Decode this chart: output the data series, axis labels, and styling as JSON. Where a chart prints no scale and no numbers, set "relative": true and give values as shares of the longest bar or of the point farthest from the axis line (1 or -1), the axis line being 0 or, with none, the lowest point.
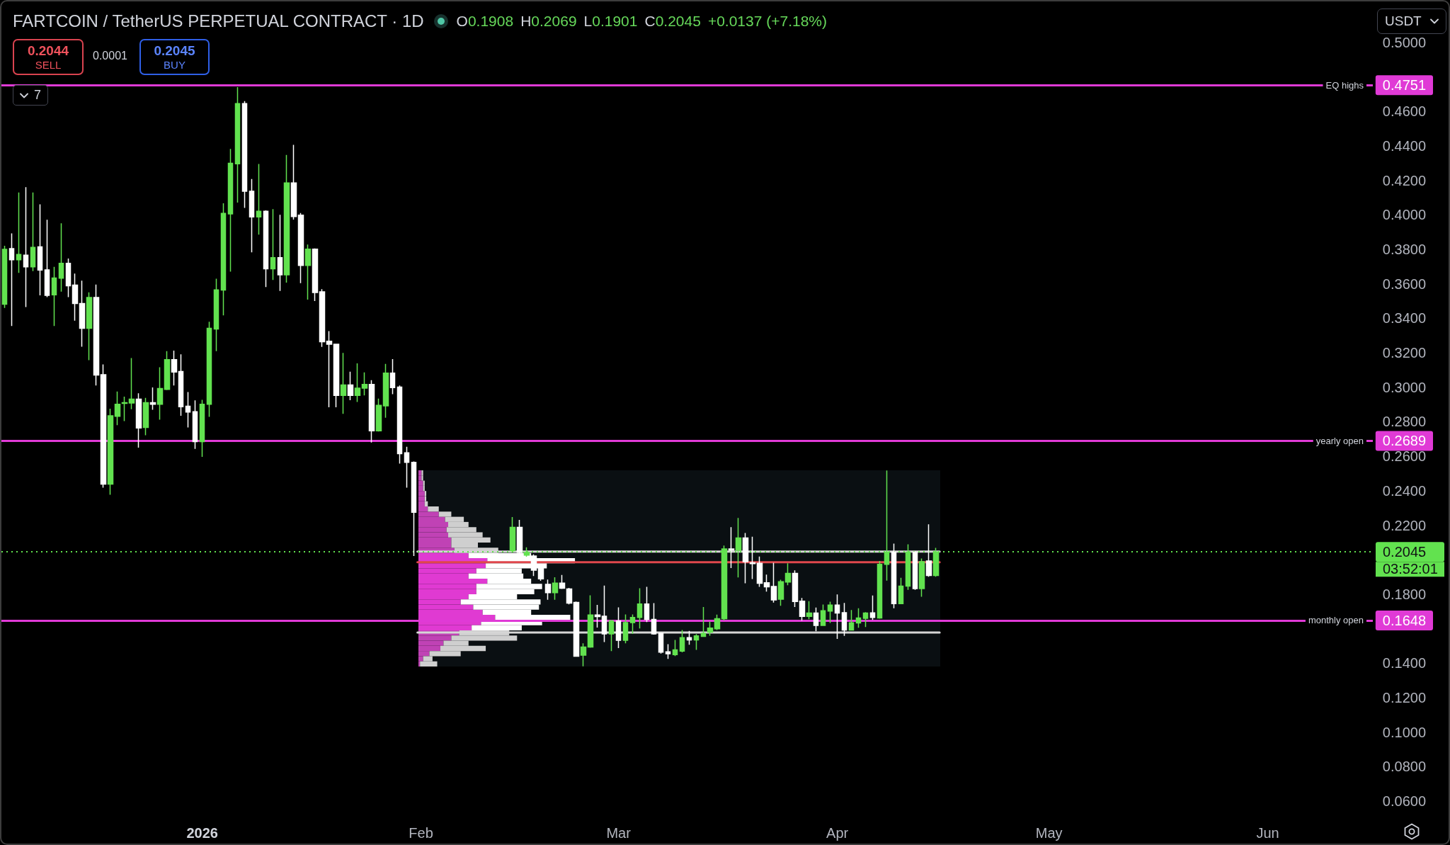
{
  "chart_data": [
    {
      "type": "candlestick",
      "title": "FARTCOIN / TetherUS PERPETUAL CONTRACT · 1D",
      "series": [
        {
          "x": [
            "2025-12-04",
            "2025-12-05",
            "2025-12-06",
            "2025-12-07",
            "2025-12-08",
            "2025-12-09",
            "2025-12-10",
            "2025-12-11",
            "2025-12-12",
            "2025-12-13",
            "2025-12-14",
            "2025-12-15",
            "2025-12-16",
            "2025-12-17",
            "2025-12-18",
            "2025-12-19",
            "2025-12-20",
            "2025-12-21",
            "2025-12-22",
            "2025-12-23",
            "2025-12-24",
            "2025-12-25",
            "2025-12-26",
            "2025-12-27",
            "2025-12-28",
            "2025-12-29",
            "2025-12-30",
            "2025-12-31",
            "2026-01-01",
            "2026-01-02",
            "2026-01-03",
            "2026-01-04",
            "2026-01-05",
            "2026-01-06",
            "2026-01-07",
            "2026-01-08",
            "2026-01-09",
            "2026-01-10",
            "2026-01-11",
            "2026-01-12",
            "2026-01-13",
            "2026-01-14",
            "2026-01-15",
            "2026-01-16",
            "2026-01-17",
            "2026-01-18",
            "2026-01-19",
            "2026-01-20",
            "2026-01-21",
            "2026-01-22",
            "2026-01-23",
            "2026-01-24",
            "2026-01-25",
            "2026-01-26",
            "2026-01-27",
            "2026-01-28",
            "2026-01-29",
            "2026-01-30",
            "2026-01-31",
            "2026-02-14",
            "2026-02-15",
            "2026-02-16",
            "2026-02-17",
            "2026-02-18",
            "2026-02-19",
            "2026-02-20",
            "2026-02-21",
            "2026-02-22",
            "2026-02-23",
            "2026-02-24",
            "2026-02-25",
            "2026-02-26",
            "2026-02-27",
            "2026-02-28",
            "2026-03-01",
            "2026-03-02",
            "2026-03-03",
            "2026-03-04",
            "2026-03-05",
            "2026-03-06",
            "2026-03-07",
            "2026-03-08",
            "2026-03-09",
            "2026-03-10",
            "2026-03-11",
            "2026-03-12",
            "2026-03-13",
            "2026-03-14",
            "2026-03-15",
            "2026-03-16",
            "2026-03-17",
            "2026-03-18",
            "2026-03-19",
            "2026-03-20",
            "2026-03-21",
            "2026-03-22",
            "2026-03-23",
            "2026-03-24",
            "2026-03-25",
            "2026-03-26",
            "2026-03-27",
            "2026-03-28",
            "2026-03-29",
            "2026-03-30",
            "2026-03-31",
            "2026-04-01",
            "2026-04-02",
            "2026-04-03",
            "2026-04-04",
            "2026-04-05",
            "2026-04-06",
            "2026-04-07",
            "2026-04-08",
            "2026-04-09",
            "2026-04-10",
            "2026-04-11",
            "2026-04-12",
            "2026-04-13",
            "2026-04-14",
            "2026-04-15"
          ],
          "ohlc": [
            [
              0.3481,
              0.382,
              0.346,
              0.38
            ],
            [
              0.3804,
              0.3892,
              0.3355,
              0.3739
            ],
            [
              0.3739,
              0.4129,
              0.3663,
              0.377
            ],
            [
              0.3766,
              0.416,
              0.3465,
              0.3698
            ],
            [
              0.3698,
              0.4129,
              0.3673,
              0.3811
            ],
            [
              0.3814,
              0.406,
              0.3533,
              0.368
            ],
            [
              0.3681,
              0.3971,
              0.3522,
              0.3533
            ],
            [
              0.3536,
              0.3698,
              0.3355,
              0.3633
            ],
            [
              0.3632,
              0.3951,
              0.3554,
              0.3718
            ],
            [
              0.3718,
              0.3746,
              0.3522,
              0.3588
            ],
            [
              0.3592,
              0.3659,
              0.3386,
              0.3485
            ],
            [
              0.3485,
              0.3618,
              0.3235,
              0.3342
            ],
            [
              0.3342,
              0.355,
              0.3157,
              0.352
            ],
            [
              0.352,
              0.3595,
              0.301,
              0.3071
            ],
            [
              0.3073,
              0.3132,
              0.2418,
              0.2438
            ],
            [
              0.2438,
              0.2876,
              0.2377,
              0.2835
            ],
            [
              0.2831,
              0.2975,
              0.278,
              0.2901
            ],
            [
              0.2906,
              0.2945,
              0.2804,
              0.291
            ],
            [
              0.2908,
              0.3169,
              0.2872,
              0.2931
            ],
            [
              0.2931,
              0.2965,
              0.265,
              0.2764
            ],
            [
              0.2767,
              0.2938,
              0.2722,
              0.291
            ],
            [
              0.291,
              0.2999,
              0.2869,
              0.2901
            ],
            [
              0.2901,
              0.3116,
              0.2812,
              0.2993
            ],
            [
              0.2988,
              0.3209,
              0.2983,
              0.316
            ],
            [
              0.316,
              0.3212,
              0.301,
              0.3088
            ],
            [
              0.3091,
              0.3191,
              0.2835,
              0.2887
            ],
            [
              0.289,
              0.2972,
              0.2767,
              0.2856
            ],
            [
              0.2858,
              0.2924,
              0.2643,
              0.2685
            ],
            [
              0.2685,
              0.2927,
              0.2596,
              0.2901
            ],
            [
              0.2901,
              0.338,
              0.2828,
              0.3342
            ],
            [
              0.3338,
              0.3629,
              0.3209,
              0.3565
            ],
            [
              0.3563,
              0.4067,
              0.3417,
              0.4008
            ],
            [
              0.4005,
              0.4382,
              0.367,
              0.4299
            ],
            [
              0.4296,
              0.474,
              0.4071,
              0.4645
            ],
            [
              0.4645,
              0.4659,
              0.404,
              0.4136
            ],
            [
              0.4136,
              0.4207,
              0.3782,
              0.3987
            ],
            [
              0.3987,
              0.4294,
              0.3885,
              0.402
            ],
            [
              0.402,
              0.4025,
              0.3581,
              0.3687
            ],
            [
              0.3687,
              0.4033,
              0.3622,
              0.3751
            ],
            [
              0.3751,
              0.4,
              0.3558,
              0.3652
            ],
            [
              0.3652,
              0.4347,
              0.3607,
              0.4185
            ],
            [
              0.4185,
              0.4405,
              0.3972,
              0.399
            ],
            [
              0.3998,
              0.401,
              0.3604,
              0.3706
            ],
            [
              0.3706,
              0.3827,
              0.3508,
              0.3801
            ],
            [
              0.3801,
              0.3805,
              0.35,
              0.3549
            ],
            [
              0.3553,
              0.3569,
              0.3234,
              0.3264
            ],
            [
              0.3267,
              0.3325,
              0.2884,
              0.3249
            ],
            [
              0.3249,
              0.3252,
              0.2884,
              0.2953
            ],
            [
              0.2953,
              0.3199,
              0.2846,
              0.3013
            ],
            [
              0.3013,
              0.309,
              0.2925,
              0.2953
            ],
            [
              0.2953,
              0.3138,
              0.2915,
              0.2995
            ],
            [
              0.2995,
              0.3086,
              0.2953,
              0.3016
            ],
            [
              0.3016,
              0.3041,
              0.2679,
              0.2747
            ],
            [
              0.2747,
              0.2934,
              0.2743,
              0.2895
            ],
            [
              0.2892,
              0.3135,
              0.2823,
              0.3082
            ],
            [
              0.3082,
              0.3163,
              0.296,
              0.2998
            ],
            [
              0.3001,
              0.301,
              0.2557,
              0.2615
            ],
            [
              0.262,
              0.2655,
              0.2418,
              0.2565
            ],
            [
              0.2565,
              0.257,
              0.2021,
              0.2275
            ],
            [
              0.2052,
              0.2247,
              0.2042,
              0.2188
            ],
            [
              0.2188,
              0.2231,
              0.2035,
              0.2042
            ],
            [
              0.2026,
              0.2072,
              0.2017,
              0.2042
            ],
            [
              0.2021,
              0.2031,
              0.1905,
              0.1939
            ],
            [
              0.1953,
              0.196,
              0.1878,
              0.1889
            ],
            [
              0.1857,
              0.1885,
              0.1768,
              0.1809
            ],
            [
              0.1809,
              0.1898,
              0.1768,
              0.1864
            ],
            [
              0.1864,
              0.1912,
              0.183,
              0.1834
            ],
            [
              0.183,
              0.1837,
              0.1741,
              0.1748
            ],
            [
              0.1752,
              0.1757,
              0.1437,
              0.144
            ],
            [
              0.1446,
              0.1515,
              0.1382,
              0.1494
            ],
            [
              0.1494,
              0.1793,
              0.149,
              0.1679
            ],
            [
              0.1679,
              0.1738,
              0.1607,
              0.167
            ],
            [
              0.1672,
              0.185,
              0.1522,
              0.157
            ],
            [
              0.157,
              0.1652,
              0.147,
              0.1645
            ],
            [
              0.1645,
              0.1724,
              0.1487,
              0.1533
            ],
            [
              0.1533,
              0.1683,
              0.1515,
              0.1635
            ],
            [
              0.1635,
              0.1683,
              0.157,
              0.1665
            ],
            [
              0.1665,
              0.1834,
              0.1601,
              0.1743
            ],
            [
              0.1743,
              0.1843,
              0.1638,
              0.1654
            ],
            [
              0.1654,
              0.1748,
              0.1566,
              0.157
            ],
            [
              0.1574,
              0.1577,
              0.1456,
              0.1464
            ],
            [
              0.1466,
              0.151,
              0.1425,
              0.1455
            ],
            [
              0.145,
              0.1535,
              0.1441,
              0.1477
            ],
            [
              0.147,
              0.1592,
              0.1463,
              0.1548
            ],
            [
              0.1548,
              0.1587,
              0.1507,
              0.1535
            ],
            [
              0.1535,
              0.1569,
              0.1477,
              0.1558
            ],
            [
              0.1555,
              0.1726,
              0.1552,
              0.1573
            ],
            [
              0.158,
              0.1641,
              0.1559,
              0.1603
            ],
            [
              0.1599,
              0.1682,
              0.1592,
              0.1658
            ],
            [
              0.1658,
              0.2082,
              0.1648,
              0.2062
            ],
            [
              0.2062,
              0.2189,
              0.1952,
              0.2055
            ],
            [
              0.2055,
              0.2242,
              0.1897,
              0.2126
            ],
            [
              0.2126,
              0.2155,
              0.1863,
              0.1989
            ],
            [
              0.1982,
              0.2133,
              0.1888,
              0.1977
            ],
            [
              0.1979,
              0.2018,
              0.1843,
              0.1863
            ],
            [
              0.1866,
              0.1914,
              0.1815,
              0.1843
            ],
            [
              0.1845,
              0.1982,
              0.1751,
              0.1767
            ],
            [
              0.1771,
              0.1884,
              0.1733,
              0.1873
            ],
            [
              0.187,
              0.1979,
              0.1852,
              0.1921
            ],
            [
              0.1921,
              0.1938,
              0.1726,
              0.1758
            ],
            [
              0.176,
              0.1778,
              0.1647,
              0.1671
            ],
            [
              0.1671,
              0.176,
              0.1655,
              0.1691
            ],
            [
              0.1691,
              0.1723,
              0.1585,
              0.1619
            ],
            [
              0.1619,
              0.174,
              0.1617,
              0.1704
            ],
            [
              0.1702,
              0.1756,
              0.1633,
              0.1737
            ],
            [
              0.1737,
              0.1799,
              0.1541,
              0.1691
            ],
            [
              0.1693,
              0.1749,
              0.1558,
              0.1592
            ],
            [
              0.1592,
              0.1708,
              0.1589,
              0.1634
            ],
            [
              0.1633,
              0.1719,
              0.1606,
              0.1662
            ],
            [
              0.166,
              0.1696,
              0.161,
              0.1691
            ],
            [
              0.1692,
              0.1792,
              0.1651,
              0.1665
            ],
            [
              0.1662,
              0.1993,
              0.1658,
              0.1973
            ],
            [
              0.1973,
              0.2517,
              0.1879,
              0.2044
            ],
            [
              0.2044,
              0.2093,
              0.1719,
              0.1745
            ],
            [
              0.1745,
              0.1895,
              0.1743,
              0.1847
            ],
            [
              0.1847,
              0.2089,
              0.1825,
              0.2044
            ],
            [
              0.2044,
              0.2048,
              0.1825,
              0.1832
            ],
            [
              0.1832,
              0.2007,
              0.1785,
              0.1989
            ],
            [
              0.1993,
              0.2205,
              0.1901,
              0.1908
            ],
            [
              0.1908,
              0.2069,
              0.1901,
              0.2045
            ]
          ],
          "colors": [
            "#62e24f",
            "#ffffff",
            "#62e24f",
            "#ffffff",
            "#62e24f",
            "#ffffff",
            "#ffffff",
            "#62e24f",
            "#62e24f",
            "#ffffff",
            "#ffffff",
            "#ffffff",
            "#62e24f",
            "#ffffff",
            "#ffffff",
            "#62e24f",
            "#62e24f",
            "#62e24f",
            "#62e24f",
            "#ffffff",
            "#62e24f",
            "#ffffff",
            "#62e24f",
            "#62e24f",
            "#ffffff",
            "#ffffff",
            "#ffffff",
            "#ffffff",
            "#62e24f",
            "#62e24f",
            "#62e24f",
            "#62e24f",
            "#62e24f",
            "#62e24f",
            "#ffffff",
            "#ffffff",
            "#62e24f",
            "#ffffff",
            "#62e24f",
            "#ffffff",
            "#62e24f",
            "#ffffff",
            "#ffffff",
            "#62e24f",
            "#ffffff",
            "#ffffff",
            "#ffffff",
            "#ffffff",
            "#62e24f",
            "#ffffff",
            "#62e24f",
            "#62e24f",
            "#ffffff",
            "#62e24f",
            "#62e24f",
            "#ffffff",
            "#ffffff",
            "#ffffff",
            "#ffffff",
            "#62e24f",
            "#ffffff",
            "#62e24f",
            "#ffffff",
            "#ffffff",
            "#ffffff",
            "#62e24f",
            "#ffffff",
            "#ffffff",
            "#ffffff",
            "#62e24f",
            "#62e24f",
            "#ffffff",
            "#ffffff",
            "#62e24f",
            "#ffffff",
            "#62e24f",
            "#62e24f",
            "#62e24f",
            "#ffffff",
            "#ffffff",
            "#ffffff",
            "#ffffff",
            "#62e24f",
            "#62e24f",
            "#ffffff",
            "#62e24f",
            "#62e24f",
            "#62e24f",
            "#62e24f",
            "#62e24f",
            "#ffffff",
            "#62e24f",
            "#ffffff",
            "#ffffff",
            "#ffffff",
            "#ffffff",
            "#ffffff",
            "#62e24f",
            "#62e24f",
            "#ffffff",
            "#ffffff",
            "#62e24f",
            "#ffffff",
            "#62e24f",
            "#62e24f",
            "#ffffff",
            "#ffffff",
            "#62e24f",
            "#62e24f",
            "#62e24f",
            "#ffffff",
            "#62e24f",
            "#62e24f",
            "#ffffff",
            "#62e24f",
            "#62e24f",
            "#ffffff",
            "#62e24f",
            "#ffffff",
            "#62e24f"
          ]
        },
        {
          "type": "line",
          "x": [
            "2026-01-31T12:00",
            "2026-04-15T12:00"
          ],
          "values": [
            0.2047,
            0.2047
          ],
          "color": "#d6d6d6"
        },
        {
          "type": "line",
          "x": [
            "2026-01-31T12:00",
            "2026-04-15T12:00"
          ],
          "values": [
            0.1985,
            0.1985
          ],
          "color": "#e0474c"
        },
        {
          "type": "line",
          "x": [
            "2026-01-31T12:00",
            "2026-04-15T12:00"
          ],
          "values": [
            0.1578,
            0.1578
          ],
          "color": "#d6d6d6"
        }
      ],
      "xlim": [
        "2025-12-03T13:00",
        "2026-06-26T15:00"
      ],
      "xticks": [
        {
          "value": "2026-01-01",
          "label": "2026"
        },
        {
          "value": "2026-02-01",
          "label": "Feb"
        },
        {
          "value": "2026-03-01",
          "label": "Mar"
        },
        {
          "value": "2026-04-01",
          "label": "Apr"
        },
        {
          "value": "2026-05-01",
          "label": "May"
        },
        {
          "value": "2026-06-01",
          "label": "Jun"
        }
      ],
      "ylim": [
        0.0354,
        0.5237
      ],
      "yticks": [
        {
          "value": 0.06,
          "label": "0.0600"
        },
        {
          "value": 0.08,
          "label": "0.0800"
        },
        {
          "value": 0.1,
          "label": "0.1000"
        },
        {
          "value": 0.12,
          "label": "0.1200"
        },
        {
          "value": 0.14,
          "label": "0.1400"
        },
        0.1648,
        {
          "value": 0.18,
          "label": "0.1800"
        },
        0.2045,
        {
          "value": 0.22,
          "label": "0.2200"
        },
        {
          "value": 0.24,
          "label": "0.2400"
        },
        {
          "value": 0.26,
          "label": "0.2600"
        },
        0.2689,
        {
          "value": 0.28,
          "label": "0.2800"
        },
        {
          "value": 0.3,
          "label": "0.3000"
        },
        {
          "value": 0.32,
          "label": "0.3200"
        },
        {
          "value": 0.34,
          "label": "0.3400"
        },
        {
          "value": 0.36,
          "label": "0.3600"
        },
        {
          "value": 0.38,
          "label": "0.3800"
        },
        {
          "value": 0.4,
          "label": "0.4000"
        },
        {
          "value": 0.42,
          "label": "0.4200"
        },
        {
          "value": 0.44,
          "label": "0.4400"
        },
        {
          "value": 0.46,
          "label": "0.4600"
        },
        0.4751,
        {
          "value": 0.5,
          "label": "0.5000"
        }
      ],
      "ref_lines": [
        {
          "axis": "y",
          "value": 0.4751,
          "label": "EQ highs",
          "color": "#e03ad6"
        },
        {
          "axis": "y",
          "value": 0.2689,
          "label": "yearly open",
          "color": "#e03ad6"
        },
        {
          "axis": "y",
          "value": 0.1648,
          "label": "monthly open",
          "color": "#e03ad6"
        },
        {
          "axis": "y",
          "value": 0.2045,
          "color": "#62e24f",
          "line_style": "dotted"
        }
      ],
      "annotations": [
        "O0.1908",
        "H0.2069",
        "L0.1901",
        "C0.2045",
        "+0.0137 (+7.18%)",
        "0.2044",
        "SELL",
        "0.0001",
        "0.2045",
        "BUY",
        "7",
        "USDT",
        "03:52:01"
      ]
    },
    {
      "type": "bar",
      "orientation": "horizontal",
      "relative": true,
      "stacked": true,
      "categories": [
        null,
        null,
        null,
        null,
        null,
        null,
        null,
        null,
        null,
        null,
        null,
        null,
        null,
        null,
        null,
        null,
        null,
        null,
        null,
        null,
        null,
        null,
        null,
        null,
        null,
        null,
        null,
        null,
        null,
        null,
        null,
        null,
        null,
        null,
        null,
        null,
        null,
        null
      ],
      "series": [
        {
          "values": [
            0.02,
            0.02,
            0.03,
            0.03,
            0.04,
            0.04,
            0.04,
            0.06,
            0.13,
            0.17,
            0.19,
            0.18,
            0.19,
            0.21,
            0.21,
            0.23,
            0.32,
            0.44,
            0.43,
            0.37,
            0.32,
            0.44,
            0.37,
            0.37,
            0.32,
            0.27,
            0.35,
            0.41,
            0.49,
            0.4,
            0.34,
            0.26,
            0.21,
            0.16,
            0.14,
            0.07,
            0.03,
            0.01
          ],
          "colors": [
            "#c042b5",
            "#c042b5",
            "#c042b5",
            "#c042b5",
            "#c042b5",
            "#c042b5",
            "#c042b5",
            "#c042b5",
            "#c042b5",
            "#c042b5",
            "#c042b5",
            "#c042b5",
            "#c042b5",
            "#c042b5",
            "#c042b5",
            "#c042b5",
            "#e03ad2",
            "#e03ad2",
            "#e03ad2",
            "#e03ad2",
            "#e03ad2",
            "#e03ad2",
            "#e03ad2",
            "#e03ad2",
            "#e03ad2",
            "#e03ad2",
            "#e03ad2",
            "#e03ad2",
            "#e03ad2",
            "#e03ad2",
            "#e03ad2",
            "#c042b5",
            "#c042b5",
            "#c042b5",
            "#c042b5",
            "#c042b5",
            "#c042b5",
            "#c042b5"
          ]
        },
        {
          "values": [
            0.01,
            0.01,
            0.01,
            0.01,
            0.01,
            0.01,
            0.02,
            0.07,
            0.08,
            0.12,
            0.13,
            0.19,
            0.22,
            0.25,
            0.17,
            0.28,
            0.4,
            0.56,
            0.39,
            0.29,
            0.35,
            0.28,
            0.42,
            0.37,
            0.31,
            0.51,
            0.42,
            0.31,
            0.48,
            0.39,
            0.32,
            0.32,
            0.42,
            0.16,
            0.29,
            0.2,
            0.06,
            0.11
          ],
          "colors": [
            "#cfcfcf",
            "#cfcfcf",
            "#cfcfcf",
            "#cfcfcf",
            "#cfcfcf",
            "#cfcfcf",
            "#cfcfcf",
            "#cfcfcf",
            "#cfcfcf",
            "#cfcfcf",
            "#cfcfcf",
            "#cfcfcf",
            "#cfcfcf",
            "#cfcfcf",
            "#cfcfcf",
            "#cfcfcf",
            "#ffffff",
            "#ffffff",
            "#ffffff",
            "#ffffff",
            "#ffffff",
            "#ffffff",
            "#ffffff",
            "#ffffff",
            "#ffffff",
            "#ffffff",
            "#ffffff",
            "#ffffff",
            "#ffffff",
            "#ffffff",
            "#ffffff",
            "#cfcfcf",
            "#cfcfcf",
            "#cfcfcf",
            "#cfcfcf",
            "#cfcfcf",
            "#cfcfcf",
            "#cfcfcf"
          ]
        }
      ]
    }
  ]
}
